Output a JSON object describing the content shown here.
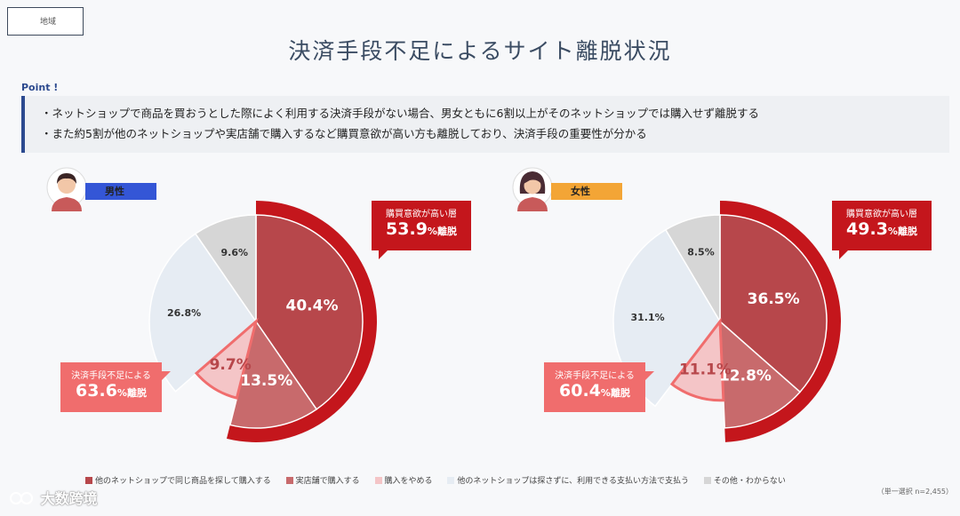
{
  "header": {
    "tag": "地域",
    "title": "決済手段不足によるサイト離脱状況"
  },
  "point": {
    "label": "Point !",
    "lines": [
      "・ネットショップで商品を買おうとした際によく利用する決済手段がない場合、男女ともに6割以上がそのネットショップでは購入せず離脱する",
      "・また約5割が他のネットショップや実店舗で購入するなど購買意欲が高い方も離脱しており、決済手段の重要性が分かる"
    ]
  },
  "colors": {
    "dark_red": "#b7474b",
    "mid_red": "#c86a6c",
    "light_pink": "#f4c5c7",
    "light_gray": "#e6ecf3",
    "gray": "#d6d6d6",
    "accent_red": "#c4161c",
    "outline_red": "#f06d6d",
    "male_badge": "#3456d6",
    "female_badge": "#f3a536"
  },
  "male": {
    "badge": "男性",
    "buy_callout": {
      "label": "購買意欲が高い層",
      "value": "53.9",
      "suffix": "%離脱"
    },
    "lack_callout": {
      "label": "決済手段不足による",
      "value": "63.6",
      "suffix": "%離脱"
    }
  },
  "female": {
    "badge": "女性",
    "buy_callout": {
      "label": "購買意欲が高い層",
      "value": "49.3",
      "suffix": "%離脱"
    },
    "lack_callout": {
      "label": "決済手段不足による",
      "value": "60.4",
      "suffix": "%離脱"
    }
  },
  "chart_data": [
    {
      "type": "pie",
      "name": "男性",
      "categories": [
        "他のネットショップで同じ商品を探して購入する",
        "実店舗で購入する",
        "購入をやめる",
        "他のネットショップは探さずに、利用できる支払い方法で支払う",
        "その他・わからない"
      ],
      "values": [
        40.4,
        13.5,
        9.7,
        26.8,
        9.6
      ],
      "labels": [
        "40.4",
        "13.5",
        "9.7",
        "26.8",
        "9.6"
      ],
      "unit": "%"
    },
    {
      "type": "pie",
      "name": "女性",
      "categories": [
        "他のネットショップで同じ商品を探して購入する",
        "実店舗で購入する",
        "購入をやめる",
        "他のネットショップは探さずに、利用できる支払い方法で支払う",
        "その他・わからない"
      ],
      "values": [
        36.5,
        12.8,
        11.1,
        31.1,
        8.5
      ],
      "labels": [
        "36.5",
        "12.8",
        "11.1",
        "31.1",
        "8.5"
      ],
      "unit": "%"
    }
  ],
  "legend": [
    "他のネットショップで同じ商品を探して購入する",
    "実店舗で購入する",
    "購入をやめる",
    "他のネットショップは探さずに、利用できる支払い方法で支払う",
    "その他・わからない"
  ],
  "note": "（単一選択 n=2,455）",
  "watermark": "大数跨境"
}
